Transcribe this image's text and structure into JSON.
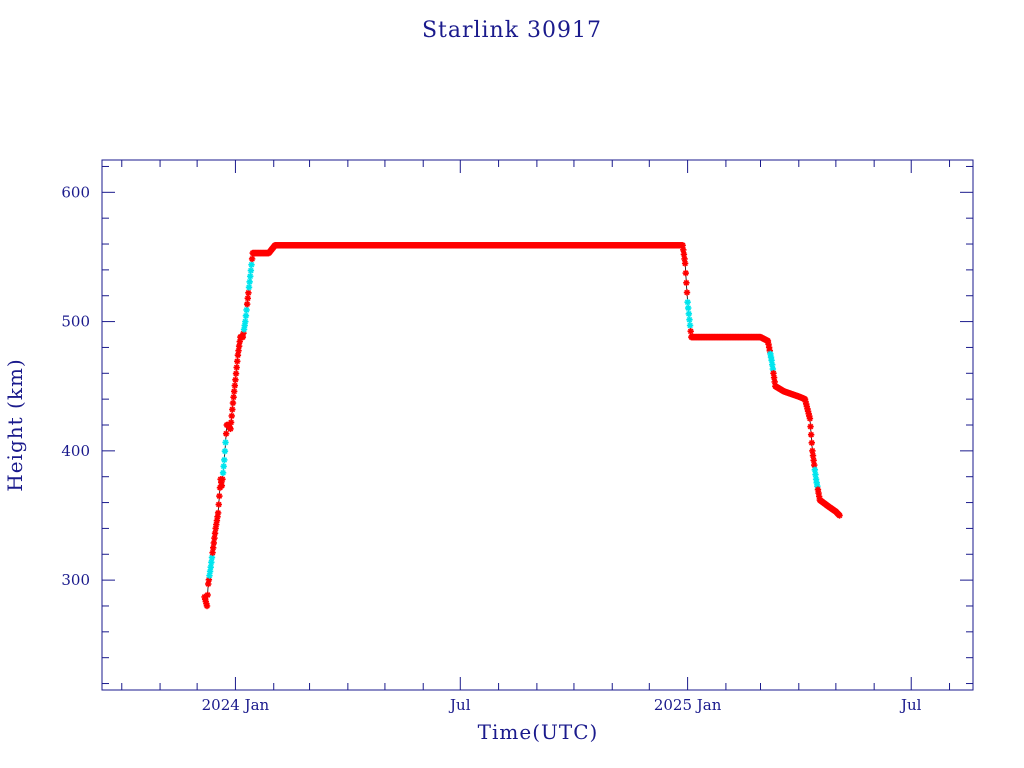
{
  "chart_data": {
    "type": "scatter",
    "title": "Starlink 30917",
    "xlabel": "Time(UTC)",
    "ylabel": "Height (km)",
    "x_range": [
      "2023-09-15",
      "2025-08-20"
    ],
    "ylim": [
      215,
      625
    ],
    "yticks": [
      300,
      400,
      500,
      600
    ],
    "yticks_minor_step": 20,
    "xticks": [
      {
        "date": "2024-01-01",
        "label": "2024 Jan"
      },
      {
        "date": "2024-07-01",
        "label": "Jul"
      },
      {
        "date": "2025-01-01",
        "label": "2025 Jan"
      },
      {
        "date": "2025-07-01",
        "label": "Jul"
      }
    ],
    "xticks_minor": [
      "2023-10-01",
      "2023-11-01",
      "2023-12-01",
      "2024-02-01",
      "2024-03-01",
      "2024-04-01",
      "2024-05-01",
      "2024-06-01",
      "2024-08-01",
      "2024-09-01",
      "2024-10-01",
      "2024-11-01",
      "2024-12-01",
      "2025-02-01",
      "2025-03-01",
      "2025-04-01",
      "2025-05-01",
      "2025-06-01",
      "2025-08-01"
    ],
    "grid": false,
    "colors": {
      "axis": "#1a1a8c",
      "points": "#ff0000",
      "highlight": "#00e5ee",
      "line": "#000000"
    },
    "series": [
      {
        "marker": "star",
        "x": [
          "2023-12-07",
          "2023-12-09",
          "2023-12-10",
          "2023-12-12",
          "2023-12-14",
          "2023-12-16",
          "2023-12-18",
          "2023-12-20",
          "2023-12-21",
          "2023-12-23",
          "2023-12-25",
          "2023-12-26",
          "2023-12-28",
          "2023-12-30",
          "2024-01-01",
          "2024-01-03",
          "2024-01-05",
          "2024-01-07",
          "2024-01-09",
          "2024-01-11",
          "2024-01-13",
          "2024-01-15",
          "2024-01-20",
          "2024-01-28",
          "2024-02-02",
          "2024-03-01",
          "2024-04-01",
          "2024-05-01",
          "2024-06-01",
          "2024-07-01",
          "2024-08-01",
          "2024-09-01",
          "2024-10-01",
          "2024-11-01",
          "2024-12-01",
          "2024-12-28",
          "2024-12-30",
          "2025-01-01",
          "2025-01-04",
          "2025-01-15",
          "2025-02-01",
          "2025-03-01",
          "2025-03-07",
          "2025-03-10",
          "2025-03-13",
          "2025-03-20",
          "2025-04-01",
          "2025-04-06",
          "2025-04-10",
          "2025-04-12",
          "2025-04-15",
          "2025-04-18",
          "2025-04-25",
          "2025-05-01",
          "2025-05-04"
        ],
        "y": [
          287,
          280,
          297,
          310,
          325,
          340,
          352,
          378,
          373,
          393,
          420,
          420,
          417,
          437,
          455,
          474,
          488,
          488,
          500,
          518,
          535,
          553,
          553,
          553,
          559,
          559,
          559,
          559,
          559,
          559,
          559,
          559,
          559,
          559,
          559,
          559,
          545,
          515,
          488,
          488,
          488,
          488,
          485,
          470,
          450,
          446,
          442,
          440,
          425,
          400,
          378,
          362,
          357,
          353,
          350
        ]
      }
    ],
    "highlight_x": [
      "2023-12-12",
      "2023-12-23",
      "2024-01-09",
      "2024-01-13",
      "2025-01-02",
      "2025-03-10",
      "2025-04-15"
    ]
  }
}
